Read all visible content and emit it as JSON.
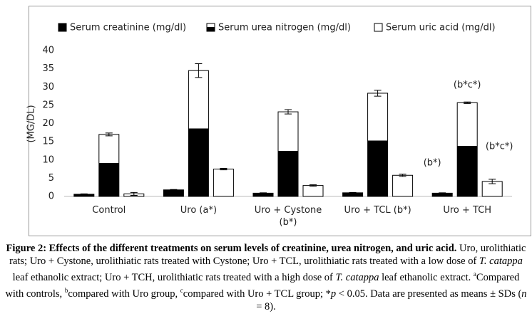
{
  "chart_data": {
    "type": "bar",
    "y_label": "(MG/DL)",
    "categories": [
      "Control",
      "Uro (a*)",
      "Uro + Cystone (b*)",
      "Uro + TCL (b*)",
      "Uro + TCH"
    ],
    "series": [
      {
        "name": "Serum creatinine (mg/dl)",
        "color": "#000000",
        "values": [
          0.6,
          1.8,
          0.9,
          1.0,
          0.9
        ],
        "errors": [
          0.1,
          0.1,
          0.1,
          0.1,
          0.1
        ]
      },
      {
        "name": "Serum urea nitrogen (mg/dl)",
        "color": "#000000",
        "values": [
          17.0,
          34.5,
          23.2,
          28.3,
          25.7
        ],
        "errors": [
          0.4,
          1.9,
          0.6,
          0.8,
          0.2
        ]
      },
      {
        "name": "Serum uric acid (mg/dl)",
        "color": "#ffffff",
        "values": [
          0.7,
          7.5,
          3.0,
          5.8,
          4.1
        ],
        "errors": [
          0.4,
          0.2,
          0.2,
          0.3,
          0.6
        ]
      }
    ],
    "annotations": [
      "(b*c*)",
      "(b*)",
      "(b*c*)"
    ],
    "ylim": [
      0,
      40
    ],
    "yticks": [
      0,
      5,
      10,
      15,
      20,
      25,
      30,
      35,
      40
    ],
    "grid": false,
    "legend": "top"
  },
  "caption": {
    "title": "Figure 2: Effects of the different treatments on serum levels of creatinine, urea nitrogen, and uric acid.",
    "parts": [
      "Uro, urolithiatic rats; Uro + Cystone, urolithiatic rats treated with Cystone; Uro + TCL, urolithiatic rats treated with a low dose of ",
      "T. catappa",
      " leaf ethanolic extract; Uro + TCH, urolithiatic rats treated with a high dose of ",
      "T. catappa",
      " leaf ethanolic extract. ",
      "a",
      "Compared with controls, ",
      "b",
      "compared with Uro group, ",
      "c",
      "compared with Uro + TCL group; *",
      "p",
      " < 0.05. Data are presented as means ± SDs (",
      "n",
      " = 8)."
    ]
  }
}
